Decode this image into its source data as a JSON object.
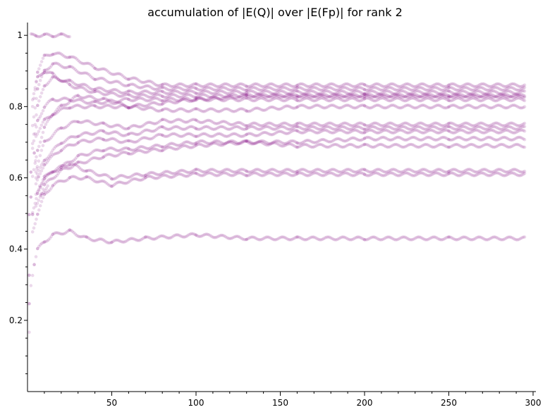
{
  "chart_data": {
    "type": "scatter",
    "title": "accumulation of |E(Q)| over |E(Fp)| for rank 2",
    "xlabel": "",
    "ylabel": "",
    "xlim": [
      0,
      300
    ],
    "ylim": [
      0,
      1.03
    ],
    "x_ticks": [
      50,
      100,
      150,
      200,
      250,
      300
    ],
    "x_tick_labels": [
      "50",
      "100",
      "150",
      "200",
      "250",
      "300"
    ],
    "y_ticks": [
      0.2,
      0.4,
      0.6,
      0.8,
      1
    ],
    "y_tick_labels": [
      "0.2",
      "0.4",
      "0.6",
      "0.8",
      "1"
    ],
    "grid": false,
    "legend": "none",
    "marker_color": "#800080",
    "marker_alpha": 0.15,
    "series": [
      {
        "x": [
          2,
          5,
          10,
          15,
          20,
          25
        ],
        "y": [
          1.0,
          1.0,
          1.0,
          1.0,
          1.0,
          1.0
        ]
      },
      {
        "x": [
          3,
          6,
          10,
          15,
          25,
          40,
          60,
          80,
          100,
          130,
          160,
          200,
          250,
          295
        ],
        "y": [
          0.8,
          0.9,
          0.94,
          0.95,
          0.94,
          0.91,
          0.88,
          0.86,
          0.86,
          0.86,
          0.86,
          0.86,
          0.86,
          0.86
        ]
      },
      {
        "x": [
          3,
          6,
          10,
          15,
          25,
          40,
          60,
          80,
          100,
          130,
          160,
          200,
          250,
          295
        ],
        "y": [
          0.75,
          0.85,
          0.9,
          0.92,
          0.91,
          0.88,
          0.86,
          0.85,
          0.85,
          0.85,
          0.85,
          0.85,
          0.85,
          0.85
        ]
      },
      {
        "x": [
          3,
          6,
          10,
          15,
          25,
          40,
          60,
          80,
          100,
          130,
          160,
          200,
          250,
          295
        ],
        "y": [
          0.7,
          0.8,
          0.86,
          0.88,
          0.87,
          0.85,
          0.84,
          0.84,
          0.84,
          0.84,
          0.84,
          0.84,
          0.84,
          0.84
        ]
      },
      {
        "x": [
          3,
          6,
          10,
          15,
          25,
          40,
          60,
          80,
          100,
          130,
          160,
          200,
          250,
          295
        ],
        "y": [
          0.82,
          0.88,
          0.9,
          0.89,
          0.86,
          0.84,
          0.83,
          0.83,
          0.83,
          0.83,
          0.83,
          0.83,
          0.83,
          0.83
        ]
      },
      {
        "x": [
          3,
          6,
          10,
          15,
          25,
          40,
          60,
          80,
          100,
          130,
          160,
          200,
          250,
          295
        ],
        "y": [
          0.68,
          0.76,
          0.8,
          0.82,
          0.82,
          0.81,
          0.82,
          0.82,
          0.82,
          0.82,
          0.82,
          0.82,
          0.82,
          0.82
        ]
      },
      {
        "x": [
          3,
          6,
          10,
          15,
          25,
          40,
          60,
          80,
          100,
          130,
          160,
          200,
          250,
          295
        ],
        "y": [
          0.6,
          0.68,
          0.74,
          0.78,
          0.8,
          0.8,
          0.8,
          0.81,
          0.82,
          0.83,
          0.83,
          0.83,
          0.83,
          0.83
        ]
      },
      {
        "x": [
          5,
          10,
          20,
          30,
          45,
          60,
          80,
          100,
          130,
          160,
          200,
          250,
          295
        ],
        "y": [
          0.72,
          0.76,
          0.8,
          0.83,
          0.82,
          0.8,
          0.79,
          0.79,
          0.79,
          0.8,
          0.8,
          0.8,
          0.8
        ]
      },
      {
        "x": [
          5,
          10,
          20,
          30,
          45,
          60,
          80,
          100,
          130,
          160,
          200,
          250,
          295
        ],
        "y": [
          0.62,
          0.7,
          0.74,
          0.76,
          0.75,
          0.74,
          0.76,
          0.76,
          0.75,
          0.75,
          0.75,
          0.75,
          0.75
        ]
      },
      {
        "x": [
          5,
          10,
          20,
          30,
          45,
          60,
          80,
          100,
          130,
          160,
          200,
          250,
          295
        ],
        "y": [
          0.6,
          0.65,
          0.7,
          0.72,
          0.73,
          0.72,
          0.74,
          0.74,
          0.74,
          0.74,
          0.74,
          0.74,
          0.74
        ]
      },
      {
        "x": [
          5,
          10,
          20,
          30,
          45,
          60,
          80,
          100,
          130,
          160,
          200,
          250,
          295
        ],
        "y": [
          0.58,
          0.64,
          0.68,
          0.7,
          0.71,
          0.7,
          0.72,
          0.72,
          0.72,
          0.73,
          0.73,
          0.73,
          0.73
        ]
      },
      {
        "x": [
          5,
          10,
          20,
          30,
          45,
          60,
          80,
          100,
          130,
          160,
          200,
          250,
          295
        ],
        "y": [
          0.55,
          0.6,
          0.63,
          0.66,
          0.68,
          0.68,
          0.69,
          0.7,
          0.7,
          0.7,
          0.71,
          0.71,
          0.71
        ]
      },
      {
        "x": [
          5,
          10,
          20,
          30,
          45,
          60,
          80,
          100,
          130,
          160,
          200,
          250,
          295
        ],
        "y": [
          0.52,
          0.58,
          0.62,
          0.64,
          0.66,
          0.67,
          0.68,
          0.69,
          0.7,
          0.69,
          0.69,
          0.69,
          0.69
        ]
      },
      {
        "x": [
          3,
          6,
          10,
          15,
          25,
          35,
          50,
          70,
          100,
          130,
          160,
          200,
          250,
          295
        ],
        "y": [
          0.5,
          0.56,
          0.6,
          0.62,
          0.64,
          0.62,
          0.6,
          0.61,
          0.62,
          0.62,
          0.62,
          0.62,
          0.62,
          0.62
        ]
      },
      {
        "x": [
          3,
          6,
          10,
          15,
          25,
          35,
          50,
          70,
          100,
          130,
          160,
          200,
          250,
          295
        ],
        "y": [
          0.45,
          0.5,
          0.55,
          0.58,
          0.6,
          0.6,
          0.58,
          0.6,
          0.61,
          0.61,
          0.61,
          0.61,
          0.61,
          0.61
        ]
      },
      {
        "x": [
          2,
          4,
          6,
          10,
          15,
          25,
          35,
          50,
          70,
          100,
          130,
          160,
          200,
          250,
          295
        ],
        "y": [
          0.3,
          0.36,
          0.4,
          0.42,
          0.44,
          0.45,
          0.43,
          0.42,
          0.43,
          0.44,
          0.43,
          0.43,
          0.43,
          0.43,
          0.43
        ]
      },
      {
        "x": [
          1,
          1,
          1,
          1,
          2,
          2,
          3,
          4,
          8,
          12
        ],
        "y": [
          0.17,
          0.25,
          0.33,
          0.5,
          0.55,
          0.62,
          0.5,
          0.67,
          0.55,
          0.58
        ]
      }
    ]
  }
}
